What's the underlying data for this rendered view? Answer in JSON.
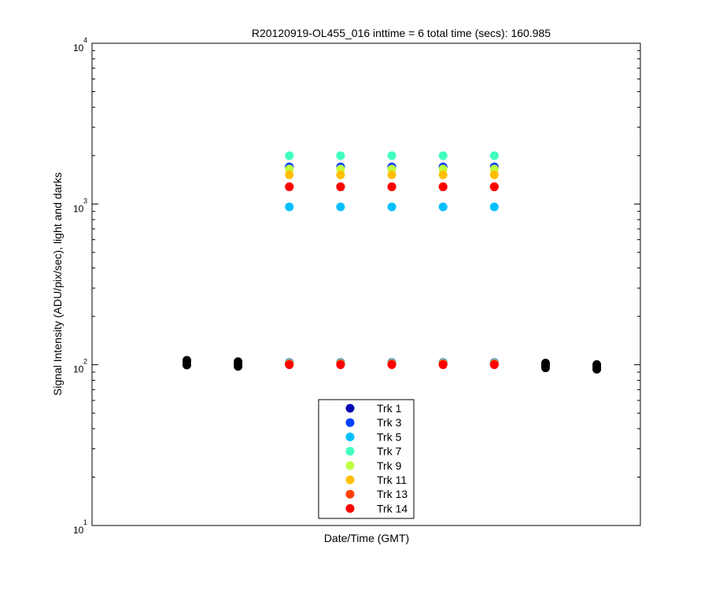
{
  "chart_data": {
    "type": "scatter",
    "title": "R20120919-OL455_016 inttime = 6 total time (secs): 160.985",
    "xlabel": "Date/Time (GMT)",
    "ylabel": "Signal Intensity (ADU/pix/sec), light and darks",
    "yscale": "log",
    "ylim": [
      10,
      10000
    ],
    "xlim": [
      0,
      10.7
    ],
    "grid": false,
    "legend_position": "bottom-center",
    "yticks": [
      {
        "base": "10",
        "exp": "1",
        "value": 10
      },
      {
        "base": "10",
        "exp": "2",
        "value": 100
      },
      {
        "base": "10",
        "exp": "3",
        "value": 1000
      },
      {
        "base": "10",
        "exp": "4",
        "value": 10000
      }
    ],
    "light_x": [
      3.85,
      4.85,
      5.85,
      6.85,
      7.85
    ],
    "series": [
      {
        "name": "Trk 1",
        "color": "#0000b4",
        "values": [
          1700,
          1700,
          1700,
          1700,
          1700
        ],
        "dark_values": [
          103,
          103,
          103,
          103,
          103
        ]
      },
      {
        "name": "Trk 3",
        "color": "#0040ff",
        "values": [
          1700,
          1700,
          1700,
          1700,
          1700
        ],
        "dark_values": [
          103,
          103,
          103,
          103,
          103
        ]
      },
      {
        "name": "Trk 5",
        "color": "#00bfff",
        "values": [
          960,
          960,
          960,
          960,
          960
        ],
        "dark_values": [
          102,
          102,
          102,
          102,
          102
        ]
      },
      {
        "name": "Trk 7",
        "color": "#40ffbf",
        "values": [
          2000,
          2000,
          2000,
          2000,
          2000
        ],
        "dark_values": [
          102,
          102,
          102,
          102,
          102
        ]
      },
      {
        "name": "Trk 9",
        "color": "#bfff40",
        "values": [
          1650,
          1650,
          1650,
          1650,
          1650
        ],
        "dark_values": [
          102,
          102,
          102,
          102,
          102
        ]
      },
      {
        "name": "Trk 11",
        "color": "#ffbf00",
        "values": [
          1520,
          1520,
          1520,
          1520,
          1520
        ],
        "dark_values": [
          101,
          101,
          101,
          101,
          101
        ]
      },
      {
        "name": "Trk 13",
        "color": "#ff4000",
        "values": [
          1280,
          1280,
          1280,
          1280,
          1280
        ],
        "dark_values": [
          101,
          101,
          101,
          101,
          101
        ]
      },
      {
        "name": "Trk 14",
        "color": "#ff0000",
        "values": [
          1280,
          1280,
          1280,
          1280,
          1280
        ],
        "dark_values": [
          100,
          100,
          100,
          100,
          100
        ]
      }
    ],
    "dark_points": {
      "color": "#000000",
      "x": [
        1.85,
        2.85,
        8.85,
        9.85
      ],
      "values": [
        103,
        101,
        99,
        97
      ]
    }
  }
}
